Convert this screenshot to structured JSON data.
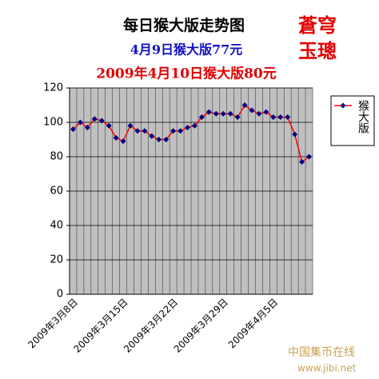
{
  "chart_data": {
    "type": "line",
    "title": "每日猴大版走势图",
    "subtitles": [
      "4月9日猴大版77元",
      "2009年4月10日猴大版80元"
    ],
    "stamp": [
      "蒼穹",
      "玉璁"
    ],
    "watermark": [
      "中国集币在线",
      "www.jibi.net"
    ],
    "categories": [
      "2009年3月8日",
      null,
      null,
      null,
      null,
      null,
      null,
      "2009年3月15日",
      null,
      null,
      null,
      null,
      null,
      null,
      "2009年3月22日",
      null,
      null,
      null,
      null,
      null,
      null,
      "2009年3月29日",
      null,
      null,
      null,
      null,
      null,
      null,
      "2009年4月5日",
      null,
      null,
      null,
      null,
      null
    ],
    "series": [
      {
        "name": "猴大版",
        "color": "#ff0000",
        "marker_color": "#000080",
        "values": [
          96,
          100,
          97,
          102,
          101,
          98,
          91,
          89,
          98,
          95,
          95,
          92,
          90,
          90,
          95,
          95,
          97,
          98,
          103,
          106,
          105,
          105,
          105,
          103,
          110,
          107,
          105,
          106,
          103,
          103,
          103,
          93,
          77,
          80
        ]
      }
    ],
    "ylim": [
      0,
      120
    ],
    "yticks": [
      0,
      20,
      40,
      60,
      80,
      100,
      120
    ],
    "grid": true,
    "xgrid": true,
    "legend": "right"
  }
}
